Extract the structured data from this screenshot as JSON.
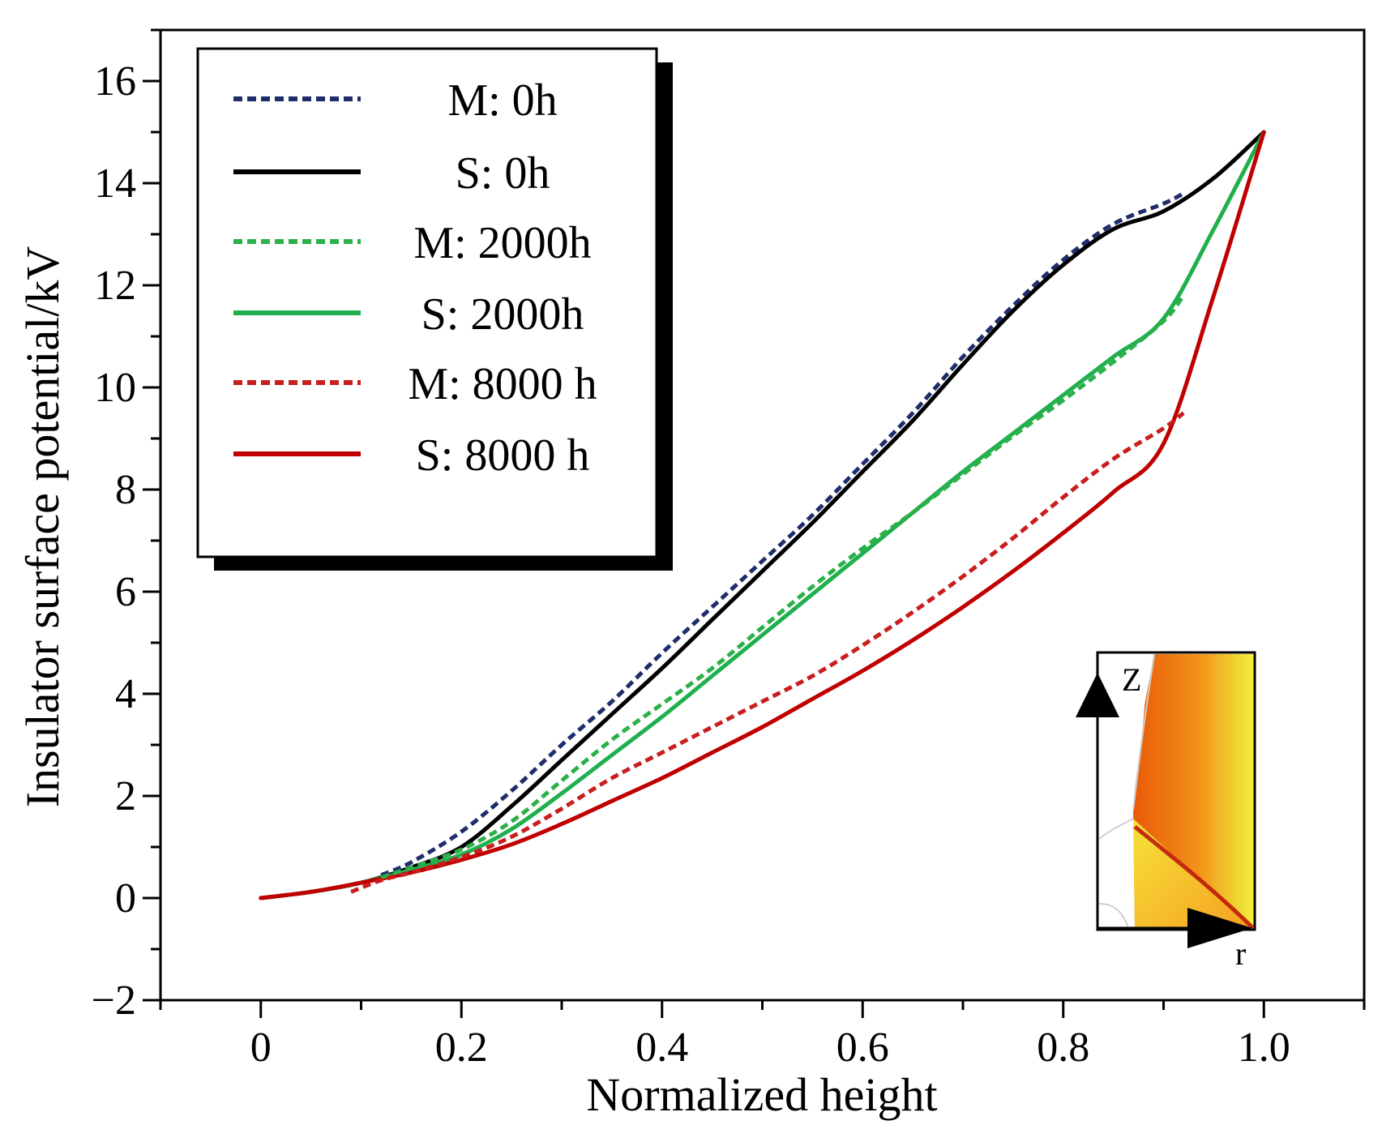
{
  "chart_data": {
    "type": "line",
    "title": "",
    "xlabel": "Normalized height",
    "ylabel": "Insulator surface potential/kV",
    "xlim": [
      -0.1,
      1.1
    ],
    "ylim": [
      -2,
      17
    ],
    "xticks": [
      0,
      0.2,
      0.4,
      0.6,
      0.8,
      1.0
    ],
    "xtick_labels": [
      "0",
      "0.2",
      "0.4",
      "0.6",
      "0.8",
      "1.0"
    ],
    "yticks": [
      -2,
      0,
      2,
      4,
      6,
      8,
      10,
      12,
      14,
      16
    ],
    "ytick_labels": [
      "−2",
      "0",
      "2",
      "4",
      "6",
      "8",
      "10",
      "12",
      "14",
      "16"
    ],
    "grid": false,
    "legend_position": "top-left",
    "series": [
      {
        "name": "M: 0h",
        "color": "#1f2d6b",
        "style": "dotted",
        "x": [
          0.12,
          0.15,
          0.2,
          0.25,
          0.3,
          0.35,
          0.4,
          0.45,
          0.5,
          0.55,
          0.6,
          0.65,
          0.7,
          0.75,
          0.8,
          0.85,
          0.9,
          0.92
        ],
        "y": [
          0.45,
          0.7,
          1.3,
          2.1,
          3.0,
          3.85,
          4.8,
          5.7,
          6.6,
          7.5,
          8.5,
          9.5,
          10.6,
          11.6,
          12.5,
          13.2,
          13.6,
          13.8
        ]
      },
      {
        "name": "S: 0h",
        "color": "#000000",
        "style": "solid",
        "x": [
          0,
          0.05,
          0.1,
          0.15,
          0.2,
          0.25,
          0.3,
          0.35,
          0.4,
          0.45,
          0.5,
          0.55,
          0.6,
          0.65,
          0.7,
          0.75,
          0.8,
          0.85,
          0.9,
          0.95,
          1.0
        ],
        "y": [
          0,
          0.12,
          0.3,
          0.6,
          1.0,
          1.8,
          2.7,
          3.6,
          4.5,
          5.45,
          6.4,
          7.35,
          8.35,
          9.35,
          10.45,
          11.5,
          12.4,
          13.1,
          13.45,
          14.1,
          15.0
        ]
      },
      {
        "name": "M: 2000h",
        "color": "#2bb04a",
        "style": "dotted",
        "x": [
          0.12,
          0.15,
          0.2,
          0.25,
          0.3,
          0.35,
          0.4,
          0.45,
          0.5,
          0.55,
          0.6,
          0.65,
          0.7,
          0.75,
          0.8,
          0.85,
          0.9,
          0.92
        ],
        "y": [
          0.4,
          0.6,
          0.95,
          1.5,
          2.3,
          3.1,
          3.8,
          4.5,
          5.3,
          6.1,
          6.85,
          7.55,
          8.3,
          9.05,
          9.75,
          10.5,
          11.3,
          11.8
        ]
      },
      {
        "name": "S: 2000h",
        "color": "#1fb04d",
        "style": "solid",
        "x": [
          0,
          0.05,
          0.1,
          0.15,
          0.2,
          0.25,
          0.3,
          0.35,
          0.4,
          0.45,
          0.5,
          0.55,
          0.6,
          0.65,
          0.7,
          0.75,
          0.8,
          0.85,
          0.9,
          0.95,
          1.0
        ],
        "y": [
          0,
          0.12,
          0.3,
          0.55,
          0.85,
          1.35,
          2.05,
          2.8,
          3.55,
          4.35,
          5.15,
          5.95,
          6.75,
          7.55,
          8.35,
          9.1,
          9.85,
          10.6,
          11.35,
          13.1,
          15.0
        ]
      },
      {
        "name": "M: 8000 h",
        "color": "#c81e1e",
        "style": "dotted",
        "x": [
          0.09,
          0.12,
          0.15,
          0.2,
          0.25,
          0.3,
          0.35,
          0.4,
          0.45,
          0.5,
          0.55,
          0.6,
          0.65,
          0.7,
          0.75,
          0.8,
          0.85,
          0.9,
          0.92
        ],
        "y": [
          0.12,
          0.35,
          0.5,
          0.8,
          1.2,
          1.75,
          2.35,
          2.85,
          3.35,
          3.85,
          4.35,
          4.95,
          5.6,
          6.3,
          7.05,
          7.85,
          8.6,
          9.2,
          9.5
        ]
      },
      {
        "name": "S: 8000 h",
        "color": "#c00000",
        "style": "solid",
        "x": [
          0,
          0.05,
          0.1,
          0.15,
          0.2,
          0.25,
          0.3,
          0.35,
          0.4,
          0.45,
          0.5,
          0.55,
          0.6,
          0.65,
          0.7,
          0.75,
          0.8,
          0.85,
          0.9,
          0.95,
          1.0
        ],
        "y": [
          0,
          0.12,
          0.3,
          0.5,
          0.75,
          1.05,
          1.45,
          1.9,
          2.35,
          2.85,
          3.35,
          3.9,
          4.45,
          5.05,
          5.7,
          6.4,
          7.15,
          7.95,
          8.9,
          11.8,
          15.0
        ]
      }
    ],
    "inset": {
      "axis_labels": {
        "vertical": "Z",
        "horizontal": "r"
      }
    }
  }
}
